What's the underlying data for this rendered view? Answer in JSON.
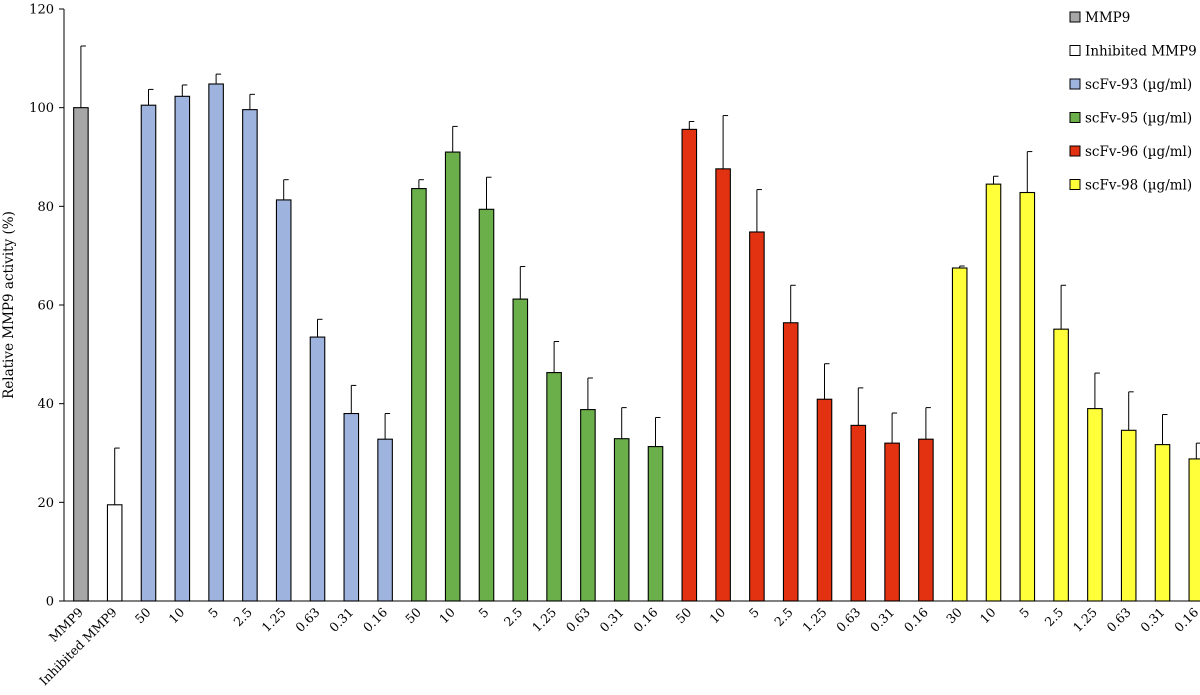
{
  "chart_data": {
    "type": "bar",
    "ylabel": "Relative MMP9 activity (%)",
    "ylim": [
      0,
      120
    ],
    "yticks": [
      "0",
      "20",
      "40",
      "60",
      "80",
      "100",
      "120"
    ],
    "grid": false,
    "legend_position": "top-right",
    "bars": [
      {
        "label": "MMP9",
        "value": 100,
        "error": 12.5,
        "series": "MMP9"
      },
      {
        "label": "Inhibited MMP9",
        "value": 19.5,
        "error": 11.5,
        "series": "Inhibited MMP9"
      },
      {
        "label": "50",
        "value": 100.5,
        "error": 3.2,
        "series": "scFv-93"
      },
      {
        "label": "10",
        "value": 102.3,
        "error": 2.3,
        "series": "scFv-93"
      },
      {
        "label": "5",
        "value": 104.8,
        "error": 2.0,
        "series": "scFv-93"
      },
      {
        "label": "2.5",
        "value": 99.6,
        "error": 3.1,
        "series": "scFv-93"
      },
      {
        "label": "1.25",
        "value": 81.3,
        "error": 4.1,
        "series": "scFv-93"
      },
      {
        "label": "0.63",
        "value": 53.5,
        "error": 3.6,
        "series": "scFv-93"
      },
      {
        "label": "0.31",
        "value": 38.0,
        "error": 5.7,
        "series": "scFv-93"
      },
      {
        "label": "0.16",
        "value": 32.8,
        "error": 5.2,
        "series": "scFv-93"
      },
      {
        "label": "50",
        "value": 83.6,
        "error": 1.8,
        "series": "scFv-95"
      },
      {
        "label": "10",
        "value": 91.0,
        "error": 5.2,
        "series": "scFv-95"
      },
      {
        "label": "5",
        "value": 79.4,
        "error": 6.5,
        "series": "scFv-95"
      },
      {
        "label": "2.5",
        "value": 61.2,
        "error": 6.6,
        "series": "scFv-95"
      },
      {
        "label": "1.25",
        "value": 46.3,
        "error": 6.3,
        "series": "scFv-95"
      },
      {
        "label": "0.63",
        "value": 38.8,
        "error": 6.4,
        "series": "scFv-95"
      },
      {
        "label": "0.31",
        "value": 32.9,
        "error": 6.3,
        "series": "scFv-95"
      },
      {
        "label": "0.16",
        "value": 31.3,
        "error": 5.9,
        "series": "scFv-95"
      },
      {
        "label": "50",
        "value": 95.6,
        "error": 1.6,
        "series": "scFv-96"
      },
      {
        "label": "10",
        "value": 87.6,
        "error": 10.8,
        "series": "scFv-96"
      },
      {
        "label": "5",
        "value": 74.8,
        "error": 8.6,
        "series": "scFv-96"
      },
      {
        "label": "2.5",
        "value": 56.4,
        "error": 7.6,
        "series": "scFv-96"
      },
      {
        "label": "1.25",
        "value": 40.9,
        "error": 7.2,
        "series": "scFv-96"
      },
      {
        "label": "0.63",
        "value": 35.6,
        "error": 7.6,
        "series": "scFv-96"
      },
      {
        "label": "0.31",
        "value": 32.0,
        "error": 6.1,
        "series": "scFv-96"
      },
      {
        "label": "0.16",
        "value": 32.8,
        "error": 6.4,
        "series": "scFv-96"
      },
      {
        "label": "30",
        "value": 67.5,
        "error": 0.4,
        "series": "scFv-98"
      },
      {
        "label": "10",
        "value": 84.5,
        "error": 1.6,
        "series": "scFv-98"
      },
      {
        "label": "5",
        "value": 82.8,
        "error": 8.3,
        "series": "scFv-98"
      },
      {
        "label": "2.5",
        "value": 55.1,
        "error": 8.9,
        "series": "scFv-98"
      },
      {
        "label": "1.25",
        "value": 39.0,
        "error": 7.2,
        "series": "scFv-98"
      },
      {
        "label": "0.63",
        "value": 34.6,
        "error": 7.8,
        "series": "scFv-98"
      },
      {
        "label": "0.31",
        "value": 31.7,
        "error": 6.1,
        "series": "scFv-98"
      },
      {
        "label": "0.16",
        "value": 28.8,
        "error": 3.2,
        "series": "scFv-98"
      }
    ],
    "legend": [
      {
        "key": "MMP9",
        "label": "MMP9",
        "color": "#a6a6a6"
      },
      {
        "key": "Inhibited MMP9",
        "label": "Inhibited MMP9",
        "color": "#ffffff"
      },
      {
        "key": "scFv-93",
        "label": "scFv-93 (µg/ml)",
        "color": "#9fb3df"
      },
      {
        "key": "scFv-95",
        "label": "scFv-95 (µg/ml)",
        "color": "#6aaf4a"
      },
      {
        "key": "scFv-96",
        "label": "scFv-96 (µg/ml)",
        "color": "#e23212"
      },
      {
        "key": "scFv-98",
        "label": "scFv-98 (µg/ml)",
        "color": "#ffff3a"
      }
    ]
  }
}
